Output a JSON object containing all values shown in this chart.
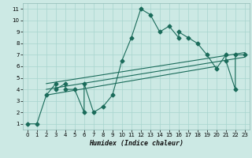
{
  "xlabel": "Humidex (Indice chaleur)",
  "bg_color": "#cce9e4",
  "grid_color": "#a8d4ce",
  "line_color": "#1a6b5a",
  "xlim": [
    -0.5,
    23.5
  ],
  "ylim": [
    0.5,
    11.5
  ],
  "xticks": [
    0,
    1,
    2,
    3,
    4,
    5,
    6,
    7,
    8,
    9,
    10,
    11,
    12,
    13,
    14,
    15,
    16,
    17,
    18,
    19,
    20,
    21,
    22,
    23
  ],
  "yticks": [
    1,
    2,
    3,
    4,
    5,
    6,
    7,
    8,
    9,
    10,
    11
  ],
  "main_x": [
    0,
    1,
    2,
    3,
    3,
    4,
    4,
    5,
    6,
    6,
    7,
    8,
    9,
    10,
    11,
    12,
    13,
    14,
    15,
    16,
    16,
    17,
    18,
    19,
    20,
    21,
    21,
    22,
    22,
    23
  ],
  "main_y": [
    1,
    1,
    3.5,
    4.5,
    4,
    4.5,
    4,
    4,
    2,
    4.5,
    2,
    2.5,
    3.5,
    6.5,
    8.5,
    11,
    10.5,
    9,
    9.5,
    8.5,
    9,
    8.5,
    8,
    7,
    5.8,
    7,
    6.5,
    4,
    7,
    7
  ],
  "trend1_x": [
    2,
    20
  ],
  "trend1_y": [
    3.5,
    6.0
  ],
  "trend2_x": [
    2,
    23
  ],
  "trend2_y": [
    4.0,
    6.8
  ],
  "trend3_x": [
    2,
    23
  ],
  "trend3_y": [
    4.5,
    7.2
  ],
  "markersize": 2.5,
  "linewidth": 0.8,
  "tick_fontsize_x": 5,
  "tick_fontsize_y": 5,
  "xlabel_fontsize": 6
}
